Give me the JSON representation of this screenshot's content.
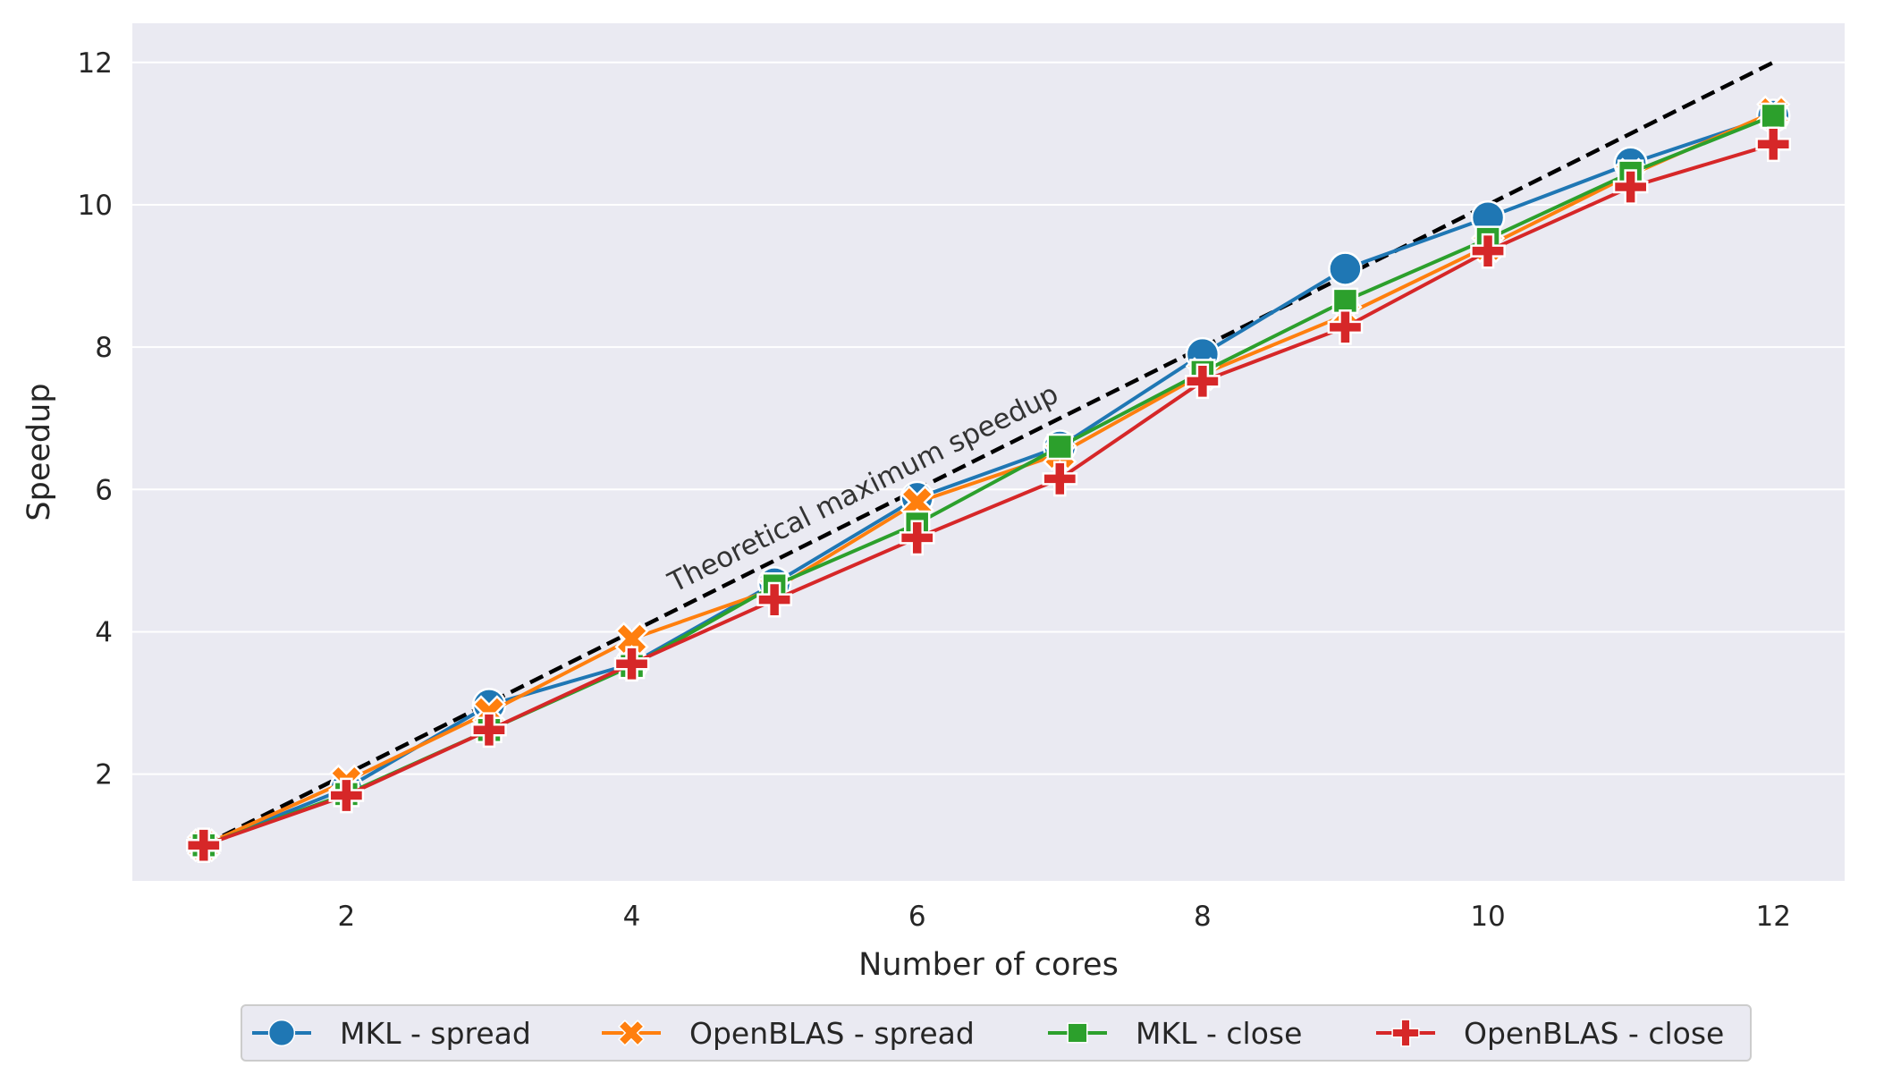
{
  "chart_data": {
    "type": "line",
    "xlabel": "Number of cores",
    "ylabel": "Speedup",
    "x": [
      1,
      2,
      3,
      4,
      5,
      6,
      7,
      8,
      9,
      10,
      11,
      12
    ],
    "xlim": [
      0.5,
      12.5
    ],
    "ylim": [
      0.5,
      12.55
    ],
    "xticks": [
      2,
      4,
      6,
      8,
      10,
      12
    ],
    "yticks": [
      2,
      4,
      6,
      8,
      10,
      12
    ],
    "grid": "horizontal",
    "legend_position": "bottom-center",
    "series": [
      {
        "name": "MKL - spread",
        "color": "#1f77b4",
        "marker": "circle",
        "values": [
          1.0,
          1.8,
          2.97,
          3.55,
          4.68,
          5.88,
          6.6,
          7.9,
          9.1,
          9.82,
          10.58,
          11.25
        ]
      },
      {
        "name": "OpenBLAS - spread",
        "color": "#ff7f0e",
        "marker": "x-mark",
        "values": [
          1.0,
          1.9,
          2.87,
          3.9,
          4.6,
          5.82,
          6.5,
          7.62,
          8.45,
          9.42,
          10.42,
          11.3
        ]
      },
      {
        "name": "MKL - close",
        "color": "#2ca02c",
        "marker": "square",
        "values": [
          1.0,
          1.72,
          2.62,
          3.52,
          4.65,
          5.52,
          6.6,
          7.65,
          8.65,
          9.52,
          10.45,
          11.25
        ]
      },
      {
        "name": "OpenBLAS - close",
        "color": "#d62728",
        "marker": "plus",
        "values": [
          1.0,
          1.7,
          2.62,
          3.55,
          4.45,
          5.32,
          6.15,
          7.52,
          8.28,
          9.35,
          10.25,
          10.85
        ]
      }
    ],
    "reference_line": {
      "label": "Theoretical maximum speedup",
      "color": "#000000",
      "x": [
        1,
        12
      ],
      "values": [
        1,
        12
      ]
    }
  }
}
